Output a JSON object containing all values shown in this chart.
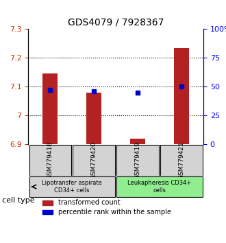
{
  "title": "GDS4079 / 7928367",
  "samples": [
    "GSM779418",
    "GSM779420",
    "GSM779419",
    "GSM779421"
  ],
  "transformed_counts": [
    7.145,
    7.08,
    6.92,
    7.235
  ],
  "percentile_ranks": [
    47,
    46,
    45,
    50
  ],
  "ylim_left": [
    6.9,
    7.3
  ],
  "ylim_right": [
    0,
    100
  ],
  "yticks_left": [
    6.9,
    7.0,
    7.1,
    7.2,
    7.3
  ],
  "yticks_right": [
    0,
    25,
    50,
    75,
    100
  ],
  "ytick_labels_left": [
    "6.9",
    "7",
    "7.1",
    "7.2",
    "7.3"
  ],
  "ytick_labels_right": [
    "0",
    "25",
    "50",
    "75",
    "100%"
  ],
  "bar_color": "#B22222",
  "dot_color": "#0000CD",
  "group1_samples": [
    0,
    1
  ],
  "group2_samples": [
    2,
    3
  ],
  "group1_label": "Lipotransfer aspirate\nCD34+ cells",
  "group2_label": "Leukapheresis CD34+\ncells",
  "group1_color": "#d3d3d3",
  "group2_color": "#90EE90",
  "cell_type_label": "cell type",
  "legend_bar_label": "transformed count",
  "legend_dot_label": "percentile rank within the sample",
  "bar_width": 0.35,
  "dotgrid_lines": [
    7.0,
    7.1,
    7.2
  ],
  "base_value": 6.9
}
